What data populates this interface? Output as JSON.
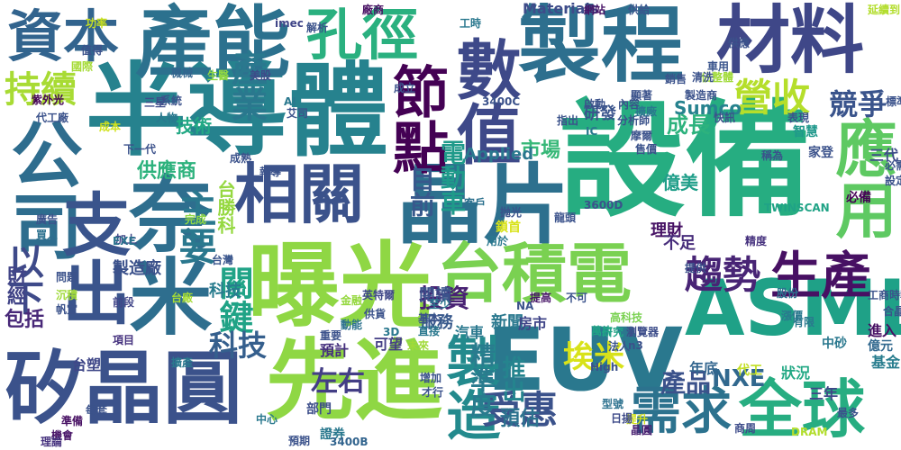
{
  "word_cloud": {
    "background": "#ffffff",
    "words": [
      {
        "text": "半導體",
        "color": "#26828e"
      },
      {
        "text": "設備",
        "color": "#26ad81"
      },
      {
        "text": "製程",
        "color": "#2d6f8e"
      },
      {
        "text": "曝光",
        "color": "#8fd744"
      },
      {
        "text": "台積電",
        "color": "#7ad151"
      },
      {
        "text": "EUV",
        "color": "#2a788e"
      },
      {
        "text": "ASML",
        "color": "#1fa187"
      },
      {
        "text": "矽晶圓",
        "color": "#3b528b"
      },
      {
        "text": "先進",
        "color": "#8fd744"
      },
      {
        "text": "材料",
        "color": "#3f4788"
      },
      {
        "text": "晶片",
        "color": "#2d708e"
      },
      {
        "text": "產能",
        "color": "#2c718e"
      },
      {
        "text": "資本",
        "color": "#32648e"
      },
      {
        "text": "孔徑",
        "color": "#2ab07f"
      },
      {
        "text": "數值",
        "color": "#3e4989"
      },
      {
        "text": "節點",
        "color": "#440154"
      },
      {
        "text": "相關",
        "color": "#3b528b"
      },
      {
        "text": "公司",
        "color": "#2e6d8e"
      },
      {
        "text": "奈米",
        "color": "#2e6e8e"
      },
      {
        "text": "支出",
        "color": "#3a548c"
      },
      {
        "text": "應用",
        "color": "#5ec962"
      },
      {
        "text": "生產",
        "color": "#471063"
      },
      {
        "text": "全球",
        "color": "#27ad81"
      },
      {
        "text": "需求",
        "color": "#2c728e"
      },
      {
        "text": "製造",
        "color": "#238a8d"
      },
      {
        "text": "趨勢",
        "color": "#482475"
      },
      {
        "text": "受惠",
        "color": "#3b528b"
      },
      {
        "text": "營收",
        "color": "#b5de2b"
      },
      {
        "text": "產業",
        "color": "#2a788e"
      },
      {
        "text": "持續",
        "color": "#a8db34"
      },
      {
        "text": "主要",
        "color": "#2a788e"
      },
      {
        "text": "以下",
        "color": "#3e4a89"
      },
      {
        "text": "關鍵",
        "color": "#20a386"
      },
      {
        "text": "目前",
        "color": "#38588c"
      },
      {
        "text": "台勝科",
        "color": "#95d840"
      },
      {
        "text": "電動車",
        "color": "#1f9a8a"
      },
      {
        "text": "競爭",
        "color": "#3a548c"
      },
      {
        "text": "埃米",
        "color": "#d8e219"
      },
      {
        "text": "精準度",
        "color": "#297b8e"
      },
      {
        "text": "科技",
        "color": "#355f8d"
      },
      {
        "text": "投資",
        "color": "#482173"
      },
      {
        "text": "左右",
        "color": "#433e85"
      },
      {
        "text": "預估",
        "color": "#2c728e"
      },
      {
        "text": "推出",
        "color": "#25848e"
      },
      {
        "text": "成長",
        "color": "#2db27d"
      },
      {
        "text": "市場",
        "color": "#37b878"
      },
      {
        "text": "產品",
        "color": "#3b528b"
      },
      {
        "text": "NXE",
        "color": "#31688e"
      },
      {
        "text": "Sumco",
        "color": "#26828e"
      },
      {
        "text": "供應商",
        "color": "#2db27d"
      },
      {
        "text": "技術",
        "color": "#22a884"
      },
      {
        "text": "包括",
        "color": "#482878"
      },
      {
        "text": "財經",
        "color": "#414487"
      },
      {
        "text": "Applied",
        "color": "#2a788e"
      },
      {
        "text": "Materials",
        "color": "#3e4c8a"
      },
      {
        "text": "研發",
        "color": "#3a548c"
      },
      {
        "text": "億美",
        "color": "#1f9e89"
      },
      {
        "text": "理財",
        "color": "#471365"
      },
      {
        "text": "不足",
        "color": "#472d7b"
      },
      {
        "text": "科技",
        "color": "#287c8e"
      },
      {
        "text": "製造廠",
        "color": "#3b518b"
      },
      {
        "text": "服務",
        "color": "#38598c"
      },
      {
        "text": "閱讀",
        "color": "#3b528b"
      },
      {
        "text": "新聞",
        "color": "#2a788e"
      },
      {
        "text": "房市",
        "color": "#404588"
      },
      {
        "text": "預計",
        "color": "#46307e"
      },
      {
        "text": "可望",
        "color": "#433e85"
      },
      {
        "text": "汽車",
        "color": "#2a788e"
      },
      {
        "text": "台塑",
        "color": "#3f4788"
      },
      {
        "text": "部門",
        "color": "#3d4e8a"
      },
      {
        "text": "證券",
        "color": "#2a788e"
      },
      {
        "text": "晶圓",
        "color": "#481f70"
      },
      {
        "text": "三年",
        "color": "#404588"
      },
      {
        "text": "年底",
        "color": "#32658e"
      },
      {
        "text": "狀況",
        "color": "#22a884"
      },
      {
        "text": "進入",
        "color": "#471063"
      },
      {
        "text": "基金",
        "color": "#287d8e"
      },
      {
        "text": "億元",
        "color": "#31688e"
      },
      {
        "text": "代工",
        "color": "#c2df23"
      },
      {
        "text": "中砂",
        "color": "#2a788e"
      },
      {
        "text": "三代",
        "color": "#3e4c8a"
      },
      {
        "text": "必備",
        "color": "#440154"
      },
      {
        "text": "家登",
        "color": "#3b528b"
      },
      {
        "text": "智慧",
        "color": "#1f988b"
      },
      {
        "text": "精度",
        "color": "#46327e"
      },
      {
        "text": "有限",
        "color": "#2a788e"
      },
      {
        "text": "股份",
        "color": "#2c728e"
      },
      {
        "text": "漲價",
        "color": "#2a788e"
      },
      {
        "text": "提供",
        "color": "#3b528b"
      },
      {
        "text": "研究",
        "color": "#20a386"
      },
      {
        "text": "瀏覽器",
        "color": "#3d4d8a"
      },
      {
        "text": "法人",
        "color": "#3a548c"
      },
      {
        "text": "萬片",
        "color": "#20a386"
      },
      {
        "text": "高科技",
        "color": "#7ad151"
      },
      {
        "text": "重要",
        "color": "#3b518b"
      },
      {
        "text": "動能",
        "color": "#2c718e"
      },
      {
        "text": "未來",
        "color": "#a0da39"
      },
      {
        "text": "提高",
        "color": "#481668"
      },
      {
        "text": "英特爾",
        "color": "#3f4788"
      },
      {
        "text": "金融",
        "color": "#95d840"
      },
      {
        "text": "至少",
        "color": "#2a788e"
      },
      {
        "text": "台灣",
        "color": "#39558c"
      },
      {
        "text": "台廠",
        "color": "#a5db36"
      },
      {
        "text": "加上",
        "color": "#3f4788"
      },
      {
        "text": "EXE",
        "color": "#2b748e"
      },
      {
        "text": "前段",
        "color": "#404588"
      },
      {
        "text": "項目",
        "color": "#46337f"
      },
      {
        "text": "擴產",
        "color": "#2a788e"
      },
      {
        "text": "問題",
        "color": "#3b528b"
      },
      {
        "text": "沉積",
        "color": "#a0da39"
      },
      {
        "text": "帆宣",
        "color": "#3b528b"
      },
      {
        "text": "機會",
        "color": "#481467"
      },
      {
        "text": "準備",
        "color": "#471063"
      },
      {
        "text": "理論",
        "color": "#46327e"
      },
      {
        "text": "中心",
        "color": "#2a788e"
      },
      {
        "text": "預期",
        "color": "#3b528b"
      },
      {
        "text": "3400B",
        "color": "#32648e"
      },
      {
        "text": "商周",
        "color": "#3e4c8a"
      },
      {
        "text": "DRAM",
        "color": "#b2dd2c"
      },
      {
        "text": "High",
        "color": "#3b528b"
      },
      {
        "text": "型號",
        "color": "#2c718e"
      },
      {
        "text": "提升",
        "color": "#d0e11c"
      },
      {
        "text": "日揚",
        "color": "#3e4a89"
      },
      {
        "text": "成本",
        "color": "#d0e11c"
      },
      {
        "text": "下一代",
        "color": "#3b518b"
      },
      {
        "text": "人物",
        "color": "#2a788e"
      },
      {
        "text": "系統",
        "color": "#3b528b"
      },
      {
        "text": "國際",
        "color": "#a5db36"
      },
      {
        "text": "機械",
        "color": "#32648e"
      },
      {
        "text": "生醫",
        "color": "#8fd744"
      },
      {
        "text": "美股",
        "color": "#3e4a89"
      },
      {
        "text": "AI",
        "color": "#2a788e"
      },
      {
        "text": "艾司",
        "color": "#3b528b"
      },
      {
        "text": "imec",
        "color": "#404588"
      },
      {
        "text": "解析",
        "color": "#3b528b"
      },
      {
        "text": "廠商",
        "color": "#471063"
      },
      {
        "text": "網站",
        "color": "#481467"
      },
      {
        "text": "供給",
        "color": "#39558c"
      },
      {
        "text": "車用",
        "color": "#3a548c"
      },
      {
        "text": "延續到",
        "color": "#b2dd2c"
      },
      {
        "text": "功率",
        "color": "#c8e020"
      },
      {
        "text": "值得",
        "color": "#3b528b"
      },
      {
        "text": "三星",
        "color": "#3e4c8a"
      },
      {
        "text": "紫外光",
        "color": "#440154"
      },
      {
        "text": "代工廠",
        "color": "#3b528b"
      },
      {
        "text": "廣告",
        "color": "#3b528b"
      },
      {
        "text": "買入",
        "color": "#2c718e"
      },
      {
        "text": "成熟",
        "color": "#3b528b"
      },
      {
        "text": "報導",
        "color": "#3b528b"
      },
      {
        "text": "完成",
        "color": "#8fd744"
      },
      {
        "text": "用於",
        "color": "#2a788e"
      },
      {
        "text": "客戶",
        "color": "#2c718e"
      },
      {
        "text": "鎖首",
        "color": "#d8e219"
      },
      {
        "text": "抛光",
        "color": "#3b528b"
      },
      {
        "text": "IC",
        "color": "#2a788e"
      },
      {
        "text": "3600D",
        "color": "#3b528b"
      },
      {
        "text": "售價",
        "color": "#3b528b"
      },
      {
        "text": "龍頭",
        "color": "#3b528b"
      },
      {
        "text": "指出",
        "color": "#3b528b"
      },
      {
        "text": "分析師",
        "color": "#3b528b"
      },
      {
        "text": "摩爾",
        "color": "#3b528b"
      },
      {
        "text": "擴廠",
        "color": "#2a788e"
      },
      {
        "text": "啟動",
        "color": "#3b528b"
      },
      {
        "text": "製造商",
        "color": "#3b528b"
      },
      {
        "text": "銷售",
        "color": "#3b528b"
      },
      {
        "text": "佔整體",
        "color": "#a0da39"
      },
      {
        "text": "表現",
        "color": "#3b528b"
      },
      {
        "text": "清洗",
        "color": "#3b528b"
      },
      {
        "text": "快訊",
        "color": "#3b528b"
      },
      {
        "text": "3400C",
        "color": "#3b528b"
      },
      {
        "text": "TWINSCAN",
        "color": "#20a386"
      },
      {
        "text": "不可",
        "color": "#3b528b"
      },
      {
        "text": "直接",
        "color": "#2a788e"
      },
      {
        "text": "基本",
        "color": "#3b528b"
      },
      {
        "text": "n3",
        "color": "#3b528b"
      },
      {
        "text": "NA",
        "color": "#3b528b"
      },
      {
        "text": "3D",
        "color": "#2a788e"
      },
      {
        "text": "供貨",
        "color": "#3b528b"
      },
      {
        "text": "才行",
        "color": "#3b528b"
      },
      {
        "text": "增加",
        "color": "#3b528b"
      },
      {
        "text": "最多",
        "color": "#3b528b"
      },
      {
        "text": "工商時報",
        "color": "#3b528b"
      },
      {
        "text": "合晶",
        "color": "#3b528b"
      },
      {
        "text": "每套",
        "color": "#3b528b"
      },
      {
        "text": "工時",
        "color": "#2a788e"
      },
      {
        "text": "設定",
        "color": "#3b528b"
      },
      {
        "text": "顯著",
        "color": "#3b528b"
      },
      {
        "text": "內容",
        "color": "#3b528b"
      },
      {
        "text": "成立",
        "color": "#3b528b"
      },
      {
        "text": "供應",
        "color": "#3b528b"
      },
      {
        "text": "標準",
        "color": "#3b528b"
      },
      {
        "text": "必需",
        "color": "#3b528b"
      },
      {
        "text": "稱為",
        "color": "#3b528b"
      }
    ]
  }
}
